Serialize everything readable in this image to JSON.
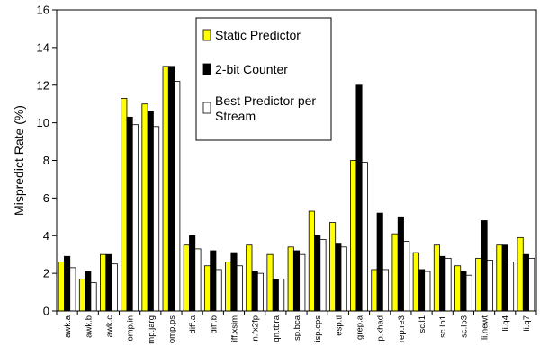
{
  "chart_data": {
    "type": "bar",
    "title": "",
    "xlabel": "",
    "ylabel": "Mispredict Rate (%)",
    "ylim": [
      0,
      16
    ],
    "yticks": [
      0,
      2,
      4,
      6,
      8,
      10,
      12,
      14,
      16
    ],
    "grid": false,
    "legend_position": "top-center",
    "categories": [
      "awk.a",
      "awk.b",
      "awk.c",
      "omp.in",
      "mp.jarg",
      "omp.ps",
      "diff.a",
      "diff.b",
      "iff.xsim",
      "n.fx2fp",
      "qn.tbra",
      "sp.bca",
      "isp.cps",
      "esp.ti",
      "grep.a",
      "p.khad",
      "rep.re3",
      "sc.l1",
      "sc.lb1",
      "sc.lb3",
      "li.newt",
      "li.q4",
      "li.q7"
    ],
    "series": [
      {
        "name": "Static Predictor",
        "color": "#ffff00",
        "values": [
          2.6,
          1.7,
          3.0,
          11.3,
          11.0,
          13.0,
          3.5,
          2.4,
          2.6,
          3.5,
          3.0,
          3.4,
          5.3,
          4.7,
          8.0,
          2.2,
          4.1,
          3.1,
          3.5,
          2.4,
          2.8,
          3.5,
          3.9
        ]
      },
      {
        "name": "2-bit Counter",
        "color": "#000000",
        "values": [
          2.9,
          2.1,
          3.0,
          10.3,
          10.6,
          13.0,
          4.0,
          3.2,
          3.1,
          2.1,
          1.7,
          3.2,
          4.0,
          3.6,
          12.0,
          5.2,
          5.0,
          2.2,
          2.9,
          2.1,
          4.8,
          3.5,
          3.0
        ]
      },
      {
        "name": "Best Predictor per Stream",
        "color": "#ffffff",
        "values": [
          2.3,
          1.5,
          2.5,
          9.9,
          9.8,
          12.2,
          3.3,
          2.2,
          2.4,
          2.0,
          1.7,
          3.0,
          3.8,
          3.4,
          7.9,
          2.2,
          3.7,
          2.1,
          2.8,
          1.9,
          2.7,
          2.6,
          2.8
        ]
      }
    ]
  }
}
